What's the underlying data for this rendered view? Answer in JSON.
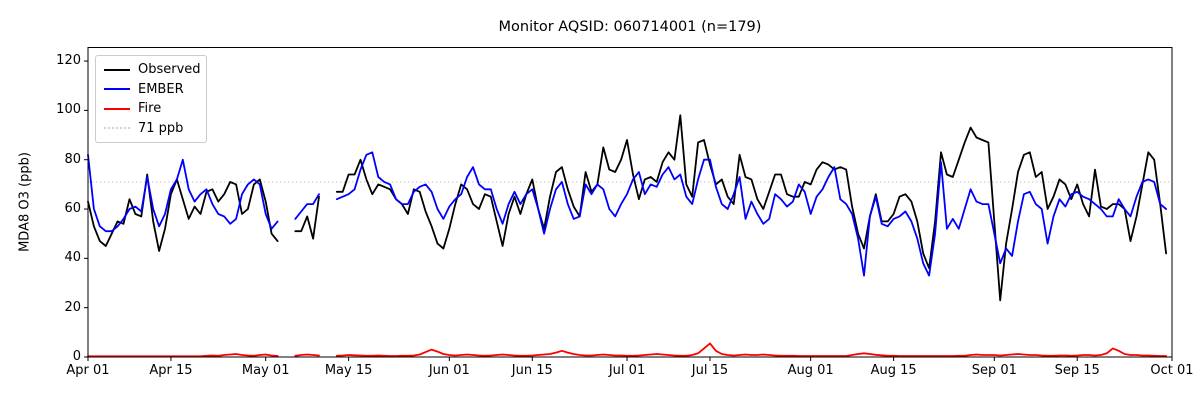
{
  "chart_data": {
    "type": "line",
    "title": "Monitor AQSID: 060714001 (n=179)",
    "xlabel": "",
    "ylabel": "MDA8 O3 (ppb)",
    "n_label": 179,
    "x_axis": {
      "start": "Apr 01",
      "end": "Oct 01",
      "total_days": 183,
      "ticks": [
        {
          "label": "Apr 01",
          "day": 0
        },
        {
          "label": "Apr 15",
          "day": 14
        },
        {
          "label": "May 01",
          "day": 30
        },
        {
          "label": "May 15",
          "day": 44
        },
        {
          "label": "Jun 01",
          "day": 61
        },
        {
          "label": "Jun 15",
          "day": 75
        },
        {
          "label": "Jul 01",
          "day": 91
        },
        {
          "label": "Jul 15",
          "day": 105
        },
        {
          "label": "Aug 01",
          "day": 122
        },
        {
          "label": "Aug 15",
          "day": 136
        },
        {
          "label": "Sep 01",
          "day": 153
        },
        {
          "label": "Sep 15",
          "day": 167
        },
        {
          "label": "Oct 01",
          "day": 183
        }
      ]
    },
    "y_axis": {
      "min": 0,
      "max": 125.5,
      "ticks": [
        0,
        20,
        40,
        60,
        80,
        100,
        120
      ]
    },
    "threshold": {
      "label": "71 ppb",
      "value": 71,
      "color": "#d3d3d3",
      "style": "dotted"
    },
    "legend": {
      "position": "upper left",
      "items": [
        "Observed",
        "EMBER",
        "Fire",
        "71 ppb"
      ]
    },
    "series": [
      {
        "name": "Observed",
        "color": "#000000",
        "values": [
          63,
          53,
          47,
          45,
          50,
          55,
          54,
          64,
          58,
          57,
          74,
          55,
          43,
          52,
          66,
          72,
          64,
          56,
          61,
          58,
          67,
          68,
          63,
          66,
          71,
          70,
          58,
          60,
          70,
          72,
          63,
          50,
          47,
          null,
          null,
          51,
          51,
          57,
          48,
          65,
          null,
          null,
          67,
          67,
          74,
          74,
          80,
          72,
          66,
          70,
          69,
          68,
          64,
          62,
          58,
          68,
          67,
          59,
          53,
          46,
          44,
          52,
          62,
          70,
          68,
          62,
          60,
          66,
          65,
          55,
          45,
          58,
          65,
          58,
          66,
          72,
          60,
          52,
          65,
          75,
          77,
          68,
          61,
          57,
          75,
          67,
          70,
          85,
          76,
          75,
          80,
          88,
          74,
          64,
          72,
          73,
          71,
          79,
          83,
          80,
          98,
          70,
          65,
          87,
          88,
          78,
          70,
          72,
          65,
          62,
          82,
          73,
          72,
          64,
          60,
          67,
          74,
          74,
          66,
          65,
          65,
          71,
          70,
          76,
          79,
          78,
          76,
          77,
          76,
          61,
          50,
          44,
          57,
          66,
          55,
          55,
          58,
          65,
          66,
          63,
          55,
          42,
          36,
          55,
          83,
          74,
          73,
          80,
          87,
          93,
          89,
          88,
          87,
          55,
          23,
          46,
          60,
          75,
          82,
          83,
          73,
          75,
          60,
          65,
          72,
          70,
          64,
          70,
          62,
          57,
          76,
          61,
          60,
          62,
          62,
          60,
          47,
          57,
          70,
          83,
          80,
          62,
          42
        ]
      },
      {
        "name": "EMBER",
        "color": "#0000ff",
        "values": [
          82,
          60,
          53,
          51,
          51,
          53,
          56,
          60,
          61,
          59,
          73,
          60,
          53,
          58,
          68,
          72,
          80,
          68,
          63,
          66,
          68,
          62,
          58,
          57,
          54,
          56,
          66,
          70,
          72,
          70,
          58,
          52,
          55,
          null,
          null,
          56,
          59,
          62,
          62,
          66,
          null,
          null,
          64,
          65,
          66,
          68,
          76,
          82,
          83,
          73,
          71,
          70,
          64,
          62,
          62,
          67,
          69,
          70,
          67,
          60,
          56,
          61,
          64,
          66,
          73,
          77,
          70,
          68,
          68,
          60,
          54,
          62,
          67,
          62,
          66,
          68,
          60,
          50,
          60,
          68,
          71,
          62,
          56,
          57,
          70,
          66,
          70,
          68,
          60,
          57,
          62,
          66,
          72,
          75,
          66,
          70,
          69,
          74,
          77,
          72,
          74,
          65,
          62,
          72,
          80,
          80,
          69,
          62,
          60,
          66,
          73,
          56,
          63,
          58,
          54,
          56,
          66,
          64,
          61,
          63,
          70,
          67,
          58,
          65,
          68,
          73,
          77,
          64,
          62,
          58,
          48,
          33,
          57,
          65,
          54,
          53,
          56,
          57,
          59,
          55,
          48,
          38,
          33,
          50,
          79,
          52,
          56,
          52,
          60,
          68,
          63,
          62,
          62,
          50,
          38,
          44,
          41,
          55,
          66,
          67,
          62,
          60,
          46,
          57,
          64,
          61,
          66,
          67,
          65,
          64,
          62,
          60,
          57,
          57,
          64,
          60,
          57,
          65,
          71,
          72,
          71,
          62,
          60
        ]
      },
      {
        "name": "Fire",
        "color": "#ff0000",
        "values": [
          0.3,
          0.3,
          0.3,
          0.3,
          0.3,
          0.3,
          0.3,
          0.3,
          0.3,
          0.3,
          0.3,
          0.3,
          0.3,
          0.3,
          0.3,
          0.3,
          0.3,
          0.3,
          0.3,
          0.3,
          0.5,
          0.6,
          0.5,
          0.8,
          1.0,
          1.2,
          0.8,
          0.6,
          0.5,
          0.8,
          1.0,
          0.6,
          0.4,
          null,
          null,
          0.5,
          0.8,
          1.0,
          0.8,
          0.6,
          null,
          null,
          0.5,
          0.6,
          0.8,
          0.7,
          0.6,
          0.5,
          0.5,
          0.6,
          0.5,
          0.4,
          0.4,
          0.5,
          0.5,
          0.6,
          1.0,
          2.0,
          3.0,
          2.2,
          1.2,
          0.8,
          0.6,
          0.8,
          1.0,
          0.8,
          0.6,
          0.5,
          0.6,
          0.8,
          1.0,
          0.8,
          0.6,
          0.5,
          0.5,
          0.6,
          0.8,
          1.0,
          1.2,
          1.8,
          2.5,
          1.8,
          1.2,
          0.8,
          0.6,
          0.6,
          0.8,
          1.0,
          0.8,
          0.6,
          0.6,
          0.5,
          0.5,
          0.6,
          0.8,
          1.0,
          1.2,
          1.0,
          0.8,
          0.6,
          0.5,
          0.5,
          0.8,
          1.5,
          3.5,
          5.5,
          2.5,
          1.2,
          0.8,
          0.6,
          0.8,
          1.0,
          0.8,
          0.8,
          1.0,
          0.8,
          0.6,
          0.5,
          0.5,
          0.5,
          0.4,
          0.4,
          0.4,
          0.4,
          0.4,
          0.4,
          0.4,
          0.4,
          0.4,
          0.8,
          1.2,
          1.5,
          1.2,
          0.9,
          0.7,
          0.5,
          0.5,
          0.4,
          0.4,
          0.4,
          0.4,
          0.4,
          0.4,
          0.4,
          0.4,
          0.4,
          0.4,
          0.5,
          0.5,
          0.8,
          1.0,
          0.8,
          0.8,
          0.8,
          0.6,
          0.8,
          1.0,
          1.2,
          1.0,
          0.8,
          0.8,
          0.6,
          0.5,
          0.5,
          0.6,
          0.6,
          0.5,
          0.6,
          0.8,
          0.8,
          0.6,
          0.8,
          1.5,
          3.5,
          2.5,
          1.2,
          0.8,
          0.8,
          0.6,
          0.6,
          0.5,
          0.4,
          0.4
        ]
      }
    ]
  }
}
